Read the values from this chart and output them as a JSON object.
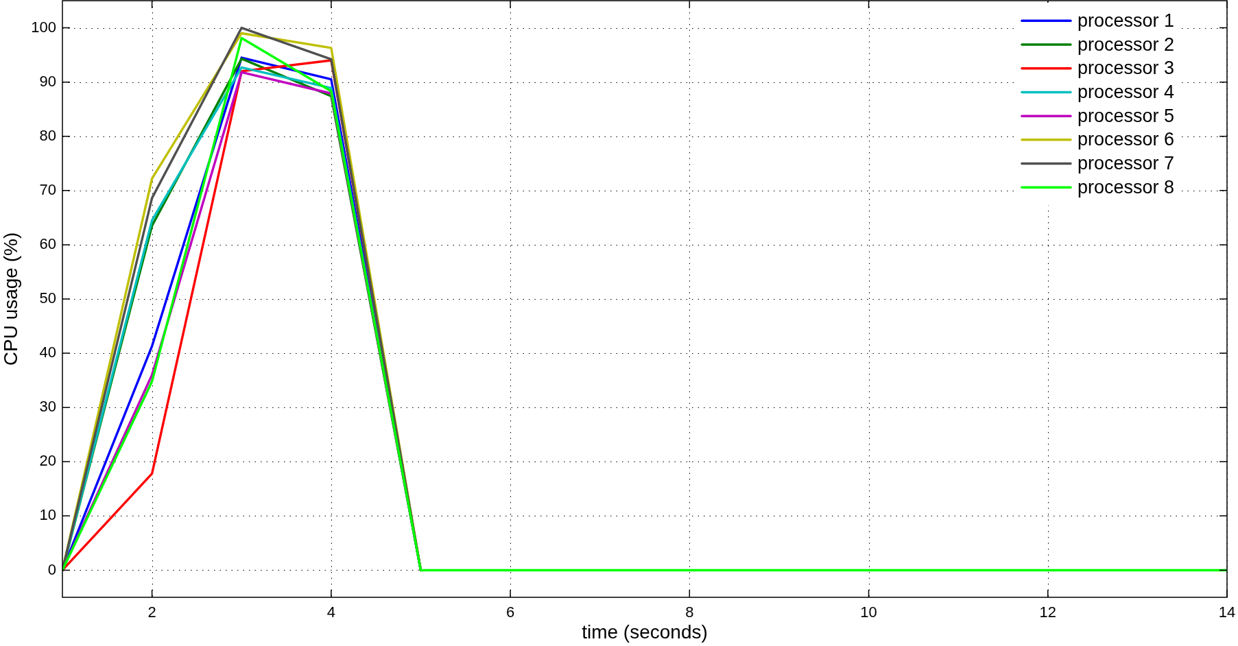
{
  "chart_data": {
    "type": "line",
    "xlabel": "time (seconds)",
    "ylabel": "CPU usage (%)",
    "x": [
      1,
      2,
      3,
      4,
      5,
      6,
      7,
      8,
      9,
      10,
      11,
      12,
      13,
      14
    ],
    "series": [
      {
        "name": "processor 1",
        "color": "#0000ff",
        "values": [
          0,
          41.3,
          94.5,
          90.5,
          0,
          null,
          null,
          null,
          null,
          null,
          null,
          null,
          null,
          null
        ]
      },
      {
        "name": "processor 2",
        "color": "#008000",
        "values": [
          0,
          63.5,
          94.3,
          87.4,
          0,
          null,
          null,
          null,
          null,
          null,
          null,
          null,
          null,
          null
        ]
      },
      {
        "name": "processor 3",
        "color": "#ff0000",
        "values": [
          0,
          17.8,
          92,
          94,
          0,
          null,
          null,
          null,
          null,
          null,
          null,
          null,
          null,
          null
        ]
      },
      {
        "name": "processor 4",
        "color": "#00bfbf",
        "values": [
          0,
          64.5,
          92.7,
          88.9,
          0,
          null,
          null,
          null,
          null,
          null,
          null,
          null,
          null,
          null
        ]
      },
      {
        "name": "processor 5",
        "color": "#bf00bf",
        "values": [
          0,
          36,
          91.8,
          87.9,
          0,
          null,
          null,
          null,
          null,
          null,
          null,
          null,
          null,
          null
        ]
      },
      {
        "name": "processor 6",
        "color": "#bfbf00",
        "values": [
          0,
          72.2,
          99,
          96.3,
          0,
          null,
          null,
          null,
          null,
          null,
          null,
          null,
          null,
          null
        ]
      },
      {
        "name": "processor 7",
        "color": "#505050",
        "values": [
          0,
          68.6,
          100,
          94.2,
          0,
          null,
          null,
          null,
          null,
          null,
          null,
          null,
          null,
          null
        ]
      },
      {
        "name": "processor 8",
        "color": "#00ff00",
        "values": [
          0,
          34.8,
          98.1,
          88.3,
          0,
          0,
          0,
          0,
          0,
          0,
          0,
          0,
          0,
          0
        ]
      }
    ],
    "xlim": [
      1,
      14
    ],
    "ylim": [
      -5,
      105
    ],
    "xticks": [
      2,
      4,
      6,
      8,
      10,
      12,
      14
    ],
    "yticks": [
      0,
      10,
      20,
      30,
      40,
      50,
      60,
      70,
      80,
      90,
      100
    ],
    "grid": true,
    "legend": "top right",
    "line_style": "solid"
  }
}
